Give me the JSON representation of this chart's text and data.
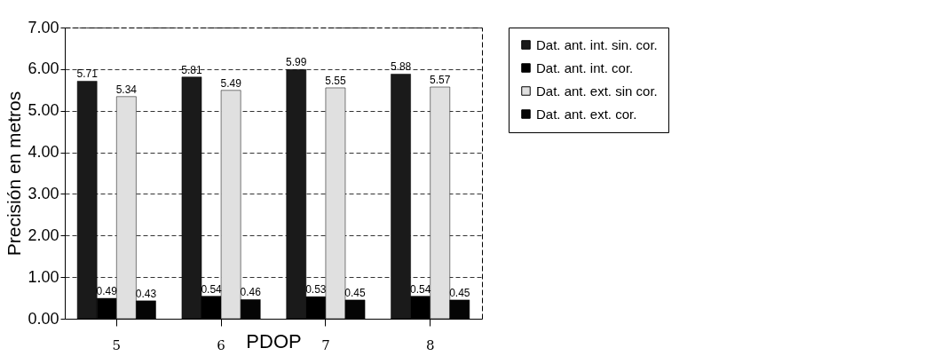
{
  "chart_data": {
    "type": "bar",
    "xlabel": "PDOP",
    "ylabel": "Precisión en metros",
    "categories": [
      "5",
      "6",
      "7",
      "8"
    ],
    "series": [
      {
        "name": "Dat. ant. int. sin. cor.",
        "color": "#1a1a1a",
        "values": [
          5.71,
          5.81,
          5.99,
          5.88
        ]
      },
      {
        "name": "Dat. ant. int. cor.",
        "color": "#000000",
        "values": [
          0.49,
          0.54,
          0.53,
          0.54
        ]
      },
      {
        "name": "Dat. ant. ext. sin cor.",
        "color": "#e0e0e0",
        "values": [
          5.34,
          5.49,
          5.55,
          5.57
        ]
      },
      {
        "name": "Dat. ant. ext. cor.",
        "color": "#050505",
        "values": [
          0.43,
          0.46,
          0.45,
          0.45
        ]
      }
    ],
    "ylim": [
      0,
      7
    ],
    "yticks": [
      {
        "value": 0,
        "label": "0.00"
      },
      {
        "value": 1,
        "label": "1.00"
      },
      {
        "value": 2,
        "label": "2.00"
      },
      {
        "value": 3,
        "label": "3.00"
      },
      {
        "value": 4,
        "label": "4.00"
      },
      {
        "value": 5,
        "label": "5.00"
      },
      {
        "value": 6,
        "label": "6.00"
      },
      {
        "value": 7,
        "label": "7.00"
      }
    ],
    "grid": "y",
    "legend": "right",
    "data_labels": true
  }
}
